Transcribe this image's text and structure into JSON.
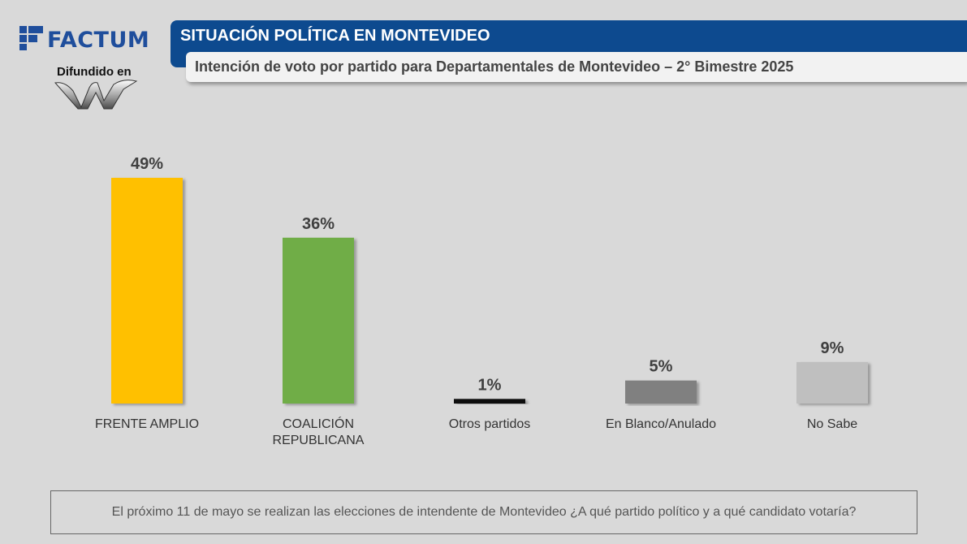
{
  "brand": {
    "name": "FACTUM",
    "disseminated_label": "Difundido en"
  },
  "header": {
    "title": "SITUACIÓN POLÍTICA EN MONTEVIDEO",
    "subtitle": "Intención de voto por partido para Departamentales de Montevideo – 2° Bimestre 2025"
  },
  "chart_data": {
    "type": "bar",
    "categories": [
      "FRENTE AMPLIO",
      "COALICIÓN REPUBLICANA",
      "Otros partidos",
      "En Blanco/Anulado",
      "No Sabe"
    ],
    "category_lines": [
      [
        "FRENTE AMPLIO"
      ],
      [
        "COALICIÓN",
        "REPUBLICANA"
      ],
      [
        "Otros partidos"
      ],
      [
        "En Blanco/Anulado"
      ],
      [
        "No Sabe"
      ]
    ],
    "values": [
      49,
      36,
      1,
      5,
      9
    ],
    "data_labels": [
      "49%",
      "36%",
      "1%",
      "5%",
      "9%"
    ],
    "colors": [
      "#ffc000",
      "#70ad47",
      "#111111",
      "#808080",
      "#bfbfbf"
    ],
    "ylim": [
      0,
      49
    ],
    "grid": false,
    "legend": "none"
  },
  "footer": {
    "question": "El próximo 11 de mayo se realizan las elecciones de intendente de Montevideo ¿A qué partido político y a qué candidato votaría?"
  }
}
